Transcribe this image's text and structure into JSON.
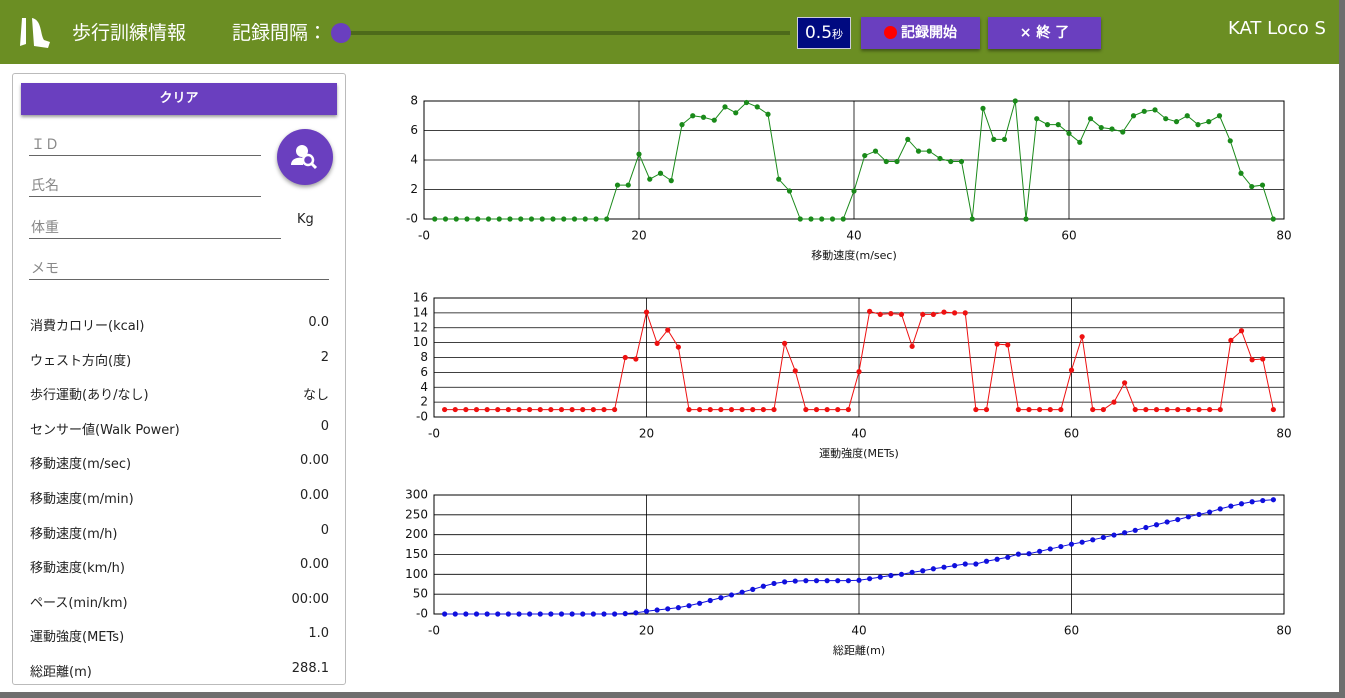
{
  "header": {
    "title": "歩行訓練情報",
    "interval_label": "記録間隔：",
    "interval_value": "0.5",
    "interval_unit": "秒",
    "start_button": "記録開始",
    "exit_button": "× 終 了",
    "app_name": "KAT Loco S"
  },
  "form": {
    "clear_button": "クリア",
    "id_label": "ＩＤ",
    "name_label": "氏名",
    "weight_label": "体重",
    "weight_unit": "Kg",
    "memo_label": "メモ"
  },
  "stats": [
    [
      "消費カロリー(kcal)",
      "0.0"
    ],
    [
      "ウェスト方向(度)",
      "2"
    ],
    [
      "歩行運動(あり/なし)",
      "なし"
    ],
    [
      "センサー値(Walk Power)",
      "0"
    ],
    [
      "移動速度(m/sec)",
      "0.00"
    ],
    [
      "移動速度(m/min)",
      "0.00"
    ],
    [
      "移動速度(m/h)",
      "0"
    ],
    [
      "移動速度(km/h)",
      "0.00"
    ],
    [
      "ペース(min/km)",
      "00:00"
    ],
    [
      "運動強度(METs)",
      "1.0"
    ],
    [
      "総距離(m)",
      "288.1"
    ]
  ],
  "chart_data": [
    {
      "type": "line",
      "x_label": "移動速度(m/sec)",
      "color": "#1a8a1a",
      "grid": true,
      "x": [
        1,
        2,
        3,
        4,
        5,
        6,
        7,
        8,
        9,
        10,
        11,
        12,
        13,
        14,
        15,
        16,
        17,
        18,
        19,
        20,
        21,
        22,
        23,
        24,
        25,
        26,
        27,
        28,
        29,
        30,
        31,
        32,
        33,
        34,
        35,
        36,
        37,
        38,
        39,
        40,
        41,
        42,
        43,
        44,
        45,
        46,
        47,
        48,
        49,
        50,
        51,
        52,
        53,
        54,
        55,
        56,
        57,
        58,
        59,
        60,
        61,
        62,
        63,
        64,
        65,
        66,
        67,
        68,
        69,
        70,
        71,
        72,
        73,
        74,
        75,
        76,
        77,
        78,
        79
      ],
      "values": [
        0,
        0,
        0,
        0,
        0,
        0,
        0,
        0,
        0,
        0,
        0,
        0,
        0,
        0,
        0,
        0,
        0,
        2.3,
        2.3,
        4.4,
        2.7,
        3.1,
        2.6,
        6.4,
        7.0,
        6.9,
        6.7,
        7.6,
        7.2,
        7.9,
        7.6,
        7.1,
        2.7,
        1.9,
        0,
        0,
        0,
        0,
        0,
        1.9,
        4.3,
        4.6,
        3.9,
        3.9,
        5.4,
        4.6,
        4.6,
        4.1,
        3.9,
        3.9,
        0,
        7.5,
        5.4,
        5.4,
        8.0,
        0,
        6.8,
        6.4,
        6.4,
        5.8,
        5.2,
        6.8,
        6.2,
        6.1,
        5.9,
        7.0,
        7.3,
        7.4,
        6.8,
        6.6,
        7.0,
        6.4,
        6.6,
        7.0,
        5.3,
        3.1,
        2.2,
        2.3,
        0
      ],
      "xlim": [
        0,
        80
      ],
      "xticks": [
        {
          "value": 0,
          "label": "-0"
        },
        20,
        40,
        60,
        80
      ],
      "ylim": [
        0,
        8
      ],
      "yticks": [
        {
          "value": 0,
          "label": "-0"
        },
        2,
        4,
        6,
        8
      ]
    },
    {
      "type": "line",
      "x_label": "運動強度(METs)",
      "color": "#ee1111",
      "grid": true,
      "x": [
        1,
        2,
        3,
        4,
        5,
        6,
        7,
        8,
        9,
        10,
        11,
        12,
        13,
        14,
        15,
        16,
        17,
        18,
        19,
        20,
        21,
        22,
        23,
        24,
        25,
        26,
        27,
        28,
        29,
        30,
        31,
        32,
        33,
        34,
        35,
        36,
        37,
        38,
        39,
        40,
        41,
        42,
        43,
        44,
        45,
        46,
        47,
        48,
        49,
        50,
        51,
        52,
        53,
        54,
        55,
        56,
        57,
        58,
        59,
        60,
        61,
        62,
        63,
        64,
        65,
        66,
        67,
        68,
        69,
        70,
        71,
        72,
        73,
        74,
        75,
        76,
        77,
        78,
        79
      ],
      "values": [
        1,
        1,
        1,
        1,
        1,
        1,
        1,
        1,
        1,
        1,
        1,
        1,
        1,
        1,
        1,
        1,
        1,
        8.0,
        7.8,
        14.1,
        9.9,
        11.7,
        9.4,
        1,
        1,
        1,
        1,
        1,
        1,
        1,
        1,
        1,
        9.9,
        6.2,
        1,
        1,
        1,
        1,
        1,
        6.1,
        14.2,
        13.8,
        13.9,
        13.8,
        9.5,
        13.8,
        13.8,
        14.1,
        14.0,
        14.0,
        1,
        1,
        9.8,
        9.7,
        1,
        1,
        1,
        1,
        1,
        6.3,
        10.8,
        1,
        1,
        2,
        4.6,
        1,
        1,
        1,
        1,
        1,
        1,
        1,
        1,
        1,
        10.3,
        11.6,
        7.7,
        7.8,
        1
      ],
      "xlim": [
        0,
        80
      ],
      "xticks": [
        {
          "value": 0,
          "label": "-0"
        },
        20,
        40,
        60,
        80
      ],
      "ylim": [
        0,
        16
      ],
      "yticks": [
        {
          "value": 0,
          "label": "-0"
        },
        2,
        4,
        6,
        8,
        10,
        12,
        14,
        16
      ]
    },
    {
      "type": "line",
      "x_label": "総距離(m)",
      "color": "#1010dd",
      "grid": true,
      "x": [
        1,
        2,
        3,
        4,
        5,
        6,
        7,
        8,
        9,
        10,
        11,
        12,
        13,
        14,
        15,
        16,
        17,
        18,
        19,
        20,
        21,
        22,
        23,
        24,
        25,
        26,
        27,
        28,
        29,
        30,
        31,
        32,
        33,
        34,
        35,
        36,
        37,
        38,
        39,
        40,
        41,
        42,
        43,
        44,
        45,
        46,
        47,
        48,
        49,
        50,
        51,
        52,
        53,
        54,
        55,
        56,
        57,
        58,
        59,
        60,
        61,
        62,
        63,
        64,
        65,
        66,
        67,
        68,
        69,
        70,
        71,
        72,
        73,
        74,
        75,
        76,
        77,
        78,
        79
      ],
      "values": [
        0,
        0,
        0,
        0,
        0,
        0,
        0,
        0,
        0,
        0,
        0,
        0,
        0,
        0,
        0,
        0,
        0,
        1,
        3,
        7,
        10,
        13,
        16,
        21,
        27,
        34,
        41,
        48,
        55,
        62,
        70,
        77,
        81,
        83,
        84,
        84,
        84,
        84,
        84,
        85,
        89,
        93,
        97,
        100,
        105,
        109,
        114,
        118,
        122,
        126,
        126,
        133,
        138,
        143,
        151,
        152,
        158,
        164,
        170,
        176,
        181,
        187,
        193,
        199,
        205,
        211,
        218,
        225,
        232,
        238,
        245,
        251,
        257,
        265,
        272,
        278,
        283,
        286,
        288.1
      ],
      "xlim": [
        0,
        80
      ],
      "xticks": [
        {
          "value": 0,
          "label": "-0"
        },
        20,
        40,
        60,
        80
      ],
      "ylim": [
        0,
        300
      ],
      "yticks": [
        {
          "value": 0,
          "label": "-0"
        },
        50,
        100,
        150,
        200,
        250,
        300
      ]
    }
  ]
}
